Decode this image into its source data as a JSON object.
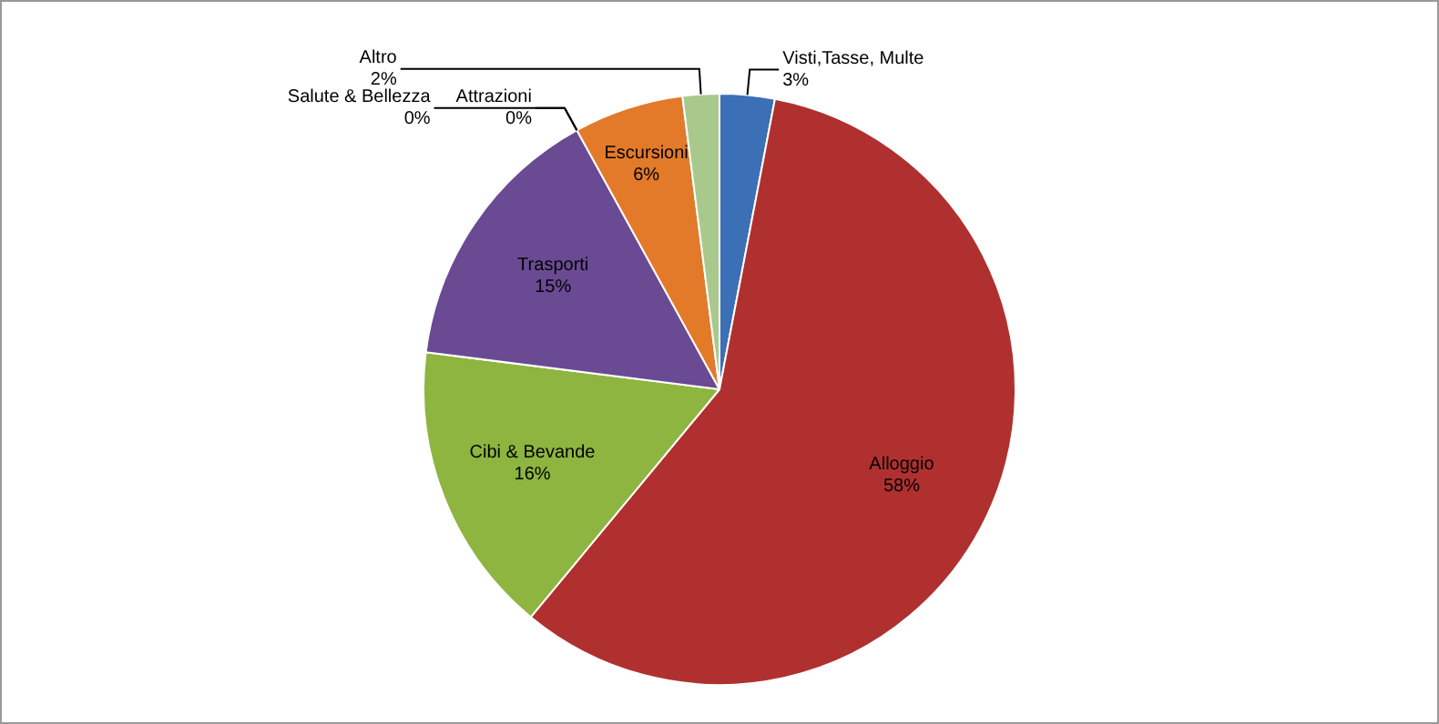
{
  "chart_data": {
    "type": "pie",
    "categories": [
      "Visti,Tasse, Multe",
      "Alloggio",
      "Cibi & Bevande",
      "Trasporti",
      "Attrazioni",
      "Salute & Bellezza",
      "Escursioni",
      "Altro"
    ],
    "values": [
      3,
      58,
      16,
      15,
      0,
      0,
      6,
      2
    ],
    "value_labels": [
      "3%",
      "58%",
      "16%",
      "15%",
      "0%",
      "0%",
      "6%",
      "2%"
    ],
    "colors": [
      "#3b6fb6",
      "#b0302f",
      "#8db53f",
      "#6b4a94",
      "#3aa6cc",
      "#c9a9a8",
      "#e27a2a",
      "#a9c98c"
    ],
    "legend": false
  }
}
